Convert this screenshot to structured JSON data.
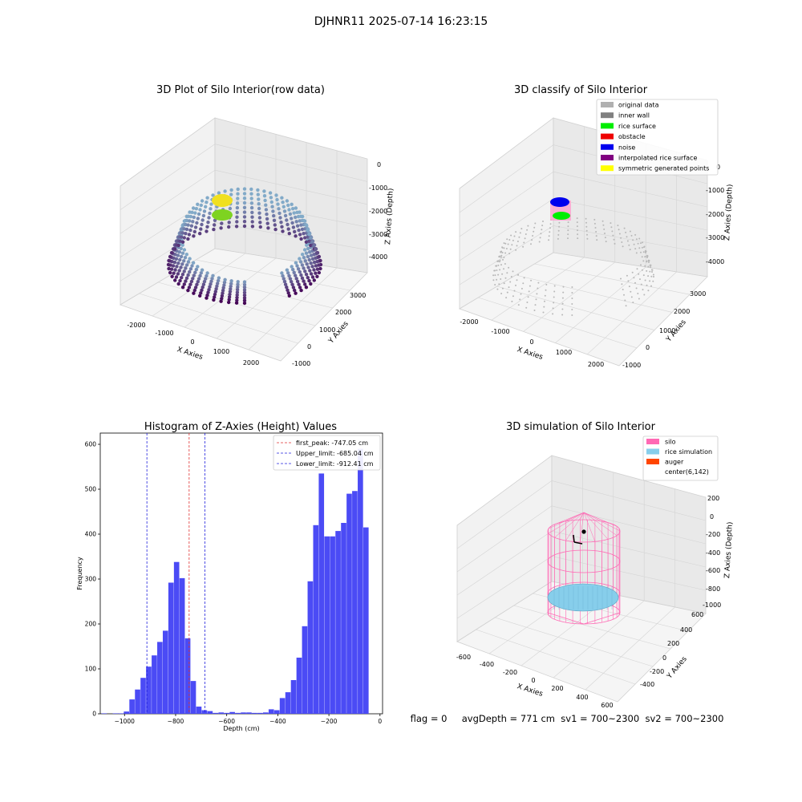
{
  "suptitle": "DJHNR11 2025-07-14 16:23:15",
  "status_line": "flag = 0     avgDepth = 771 cm  sv1 = 700~2300  sv2 = 700~2300",
  "colors": {
    "hist_bar": "#4b4bf5",
    "first_peak_line": "#e03030",
    "limit_line": "#2020dd",
    "silo": "#ff69b4",
    "rice": "#87ceeb",
    "auger": "#ff4500",
    "grey": "#b0b0b0",
    "inner_wall": "#808080",
    "rice_surface": "#00ee00",
    "obstacle": "#ee0000",
    "noise": "#0000ee",
    "interp": "#800080",
    "symmetric": "#ffff00"
  },
  "chart_data": [
    {
      "type": "scatter",
      "title": "3D Plot of Silo Interior(row data)",
      "xlabel": "X Axies",
      "ylabel": "Y Axies",
      "zlabel": "Z Axies (Depth)",
      "xticks": [
        "-2000",
        "-1000",
        "0",
        "1000",
        "2000"
      ],
      "yticks": [
        "-1000",
        "0",
        "1000",
        "2000",
        "3000"
      ],
      "zticks": [
        "0",
        "-1000",
        "-2000",
        "-3000",
        "-4000"
      ]
    },
    {
      "type": "scatter",
      "title": "3D classify of Silo Interior",
      "xlabel": "X Axies",
      "ylabel": "Y Axies",
      "zlabel": "Z Axies (Depth)",
      "xticks": [
        "-2000",
        "-1000",
        "0",
        "1000",
        "2000"
      ],
      "yticks": [
        "-1000",
        "0",
        "1000",
        "2000",
        "3000"
      ],
      "zticks": [
        "0",
        "-1000",
        "-2000",
        "-3000",
        "-4000"
      ],
      "legend": [
        {
          "label": "original data",
          "color": "#b0b0b0"
        },
        {
          "label": "inner wall",
          "color": "#808080"
        },
        {
          "label": "rice surface",
          "color": "#00ee00"
        },
        {
          "label": "obstacle",
          "color": "#ee0000"
        },
        {
          "label": "noise",
          "color": "#0000ee"
        },
        {
          "label": "interpolated rice surface",
          "color": "#800080"
        },
        {
          "label": "symmetric generated points",
          "color": "#ffff00"
        }
      ],
      "legend_position": "top-right"
    },
    {
      "type": "bar",
      "title": "Histogram of Z-Axies (Height) Values",
      "xlabel": "Depth (cm)",
      "ylabel": "Frequency",
      "xlim": [
        -1095,
        10
      ],
      "ylim": [
        0,
        625
      ],
      "xticks": [
        -1000,
        -800,
        -600,
        -400,
        -200,
        0
      ],
      "yticks": [
        0,
        100,
        200,
        300,
        400,
        500,
        600
      ],
      "bin_width": 21.8,
      "bin_start": -1090,
      "counts": [
        1,
        0,
        1,
        1,
        5,
        32,
        54,
        80,
        105,
        130,
        160,
        185,
        292,
        338,
        302,
        168,
        73,
        16,
        8,
        6,
        2,
        3,
        2,
        4,
        2,
        3,
        3,
        2,
        2,
        3,
        10,
        8,
        35,
        48,
        75,
        125,
        195,
        295,
        420,
        535,
        395,
        395,
        407,
        425,
        490,
        496,
        590,
        415
      ],
      "vlines": [
        {
          "label": "first_peak: -747.05 cm",
          "x": -747.05,
          "style": "red-dashed"
        },
        {
          "label": "Upper_limit: -685.04 cm",
          "x": -685.04,
          "style": "blue-dashed"
        },
        {
          "label": "Lower_limit: -912.41 cm",
          "x": -912.41,
          "style": "blue-dashed"
        }
      ],
      "legend_position": "top-right"
    },
    {
      "type": "scatter",
      "title": "3D simulation of Silo Interior",
      "xlabel": "X Axies",
      "ylabel": "Y Axies",
      "zlabel": "Z Axies (Depth)",
      "xticks": [
        "-600",
        "-400",
        "-200",
        "0",
        "200",
        "400",
        "600"
      ],
      "yticks": [
        "-400",
        "-200",
        "0",
        "200",
        "400",
        "600"
      ],
      "zticks": [
        "200",
        "0",
        "-200",
        "-400",
        "-600",
        "-800",
        "-1000"
      ],
      "legend": [
        {
          "label": "silo",
          "color": "#ff69b4"
        },
        {
          "label": "rice simulation",
          "color": "#87ceeb"
        },
        {
          "label": "auger",
          "color": "#ff4500"
        },
        {
          "label": "center(6,142)",
          "color": ""
        }
      ],
      "legend_position": "top-right"
    }
  ]
}
